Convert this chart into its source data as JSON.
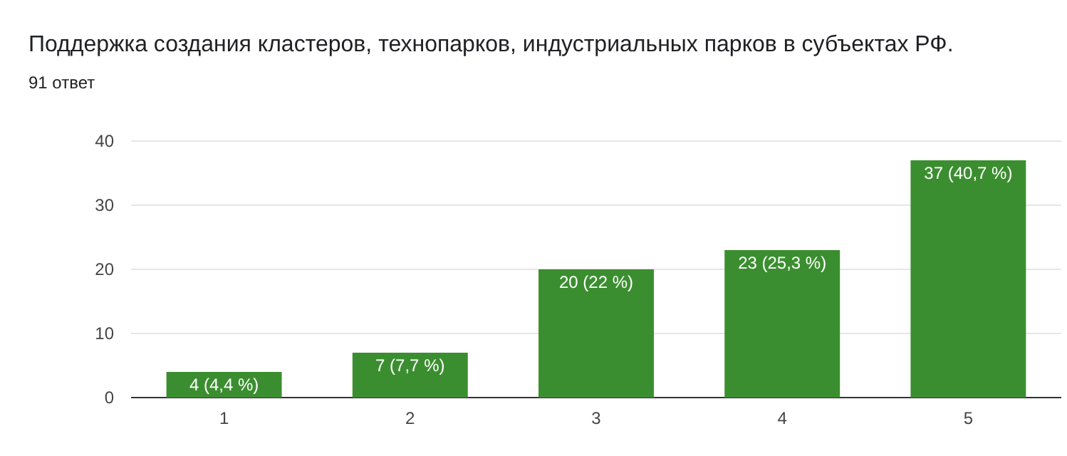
{
  "chart_data": {
    "type": "bar",
    "title": "Поддержка создания кластеров, технопарков, индустриальных парков в субъектах РФ.",
    "subtitle": "91 ответ",
    "categories": [
      "1",
      "2",
      "3",
      "4",
      "5"
    ],
    "values": [
      4,
      7,
      20,
      23,
      37
    ],
    "value_labels": [
      "4 (4,4 %)",
      "7 (7,7 %)",
      "20 (22 %)",
      "23 (25,3 %)",
      "37 (40,7 %)"
    ],
    "color": "#3b8e2f",
    "ylim": [
      0,
      40
    ],
    "yticks": [
      0,
      10,
      20,
      30,
      40
    ],
    "grid": "y"
  }
}
